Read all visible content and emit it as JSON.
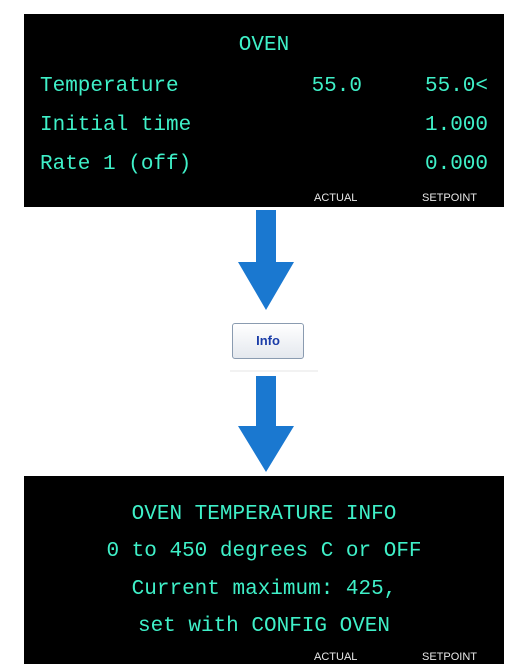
{
  "top_panel": {
    "title": "OVEN",
    "rows": [
      {
        "label": "Temperature",
        "actual": "55.0",
        "setpoint": "55.0<"
      },
      {
        "label": "Initial time",
        "setpoint": "1.000"
      },
      {
        "label": "Rate 1 (off)",
        "setpoint": "0.000"
      }
    ],
    "footer": {
      "actual": "ACTUAL",
      "setpoint": "SETPOINT"
    }
  },
  "button": {
    "label": "Info"
  },
  "bottom_panel": {
    "lines": [
      "OVEN TEMPERATURE INFO",
      "0 to 450 degrees C or OFF",
      "Current maximum: 425,",
      "set with CONFIG OVEN"
    ],
    "footer": {
      "actual": "ACTUAL",
      "setpoint": "SETPOINT"
    }
  }
}
